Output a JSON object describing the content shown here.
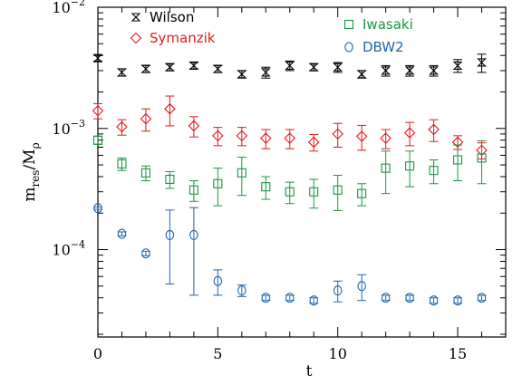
{
  "chart_data": {
    "type": "scatter",
    "xlabel": "t",
    "ylabel_main": "m",
    "ylabel_sub": "res",
    "ylabel_den": "/M",
    "ylabel_den_sub": "ρ",
    "xlim": [
      0,
      17
    ],
    "ylim": [
      1.9e-05,
      0.01
    ],
    "yscale": "log",
    "x_ticks": [
      0,
      5,
      10,
      15
    ],
    "x_tick_labels": [
      "0",
      "5",
      "10",
      "15"
    ],
    "y_ticks": [
      0.0001,
      0.001,
      0.01
    ],
    "y_tick_labels": [
      {
        "base": "10",
        "exp": "−4"
      },
      {
        "base": "10",
        "exp": "−3"
      },
      {
        "base": "10",
        "exp": "−2"
      }
    ],
    "legend_placement": "top",
    "series": [
      {
        "name": "Wilson",
        "color": "#000000",
        "marker": "hourglass",
        "x": [
          0,
          1,
          2,
          3,
          4,
          5,
          6,
          7,
          8,
          9,
          10,
          11,
          12,
          13,
          14,
          15,
          16
        ],
        "y": [
          0.0038,
          0.0029,
          0.0031,
          0.0032,
          0.0033,
          0.0031,
          0.0028,
          0.0029,
          0.0033,
          0.0032,
          0.0032,
          0.0028,
          0.003,
          0.003,
          0.003,
          0.0033,
          0.0035
        ],
        "err": [
          0.0002,
          0.0002,
          0.0002,
          0.0002,
          0.0002,
          0.0002,
          0.0002,
          0.0003,
          0.0003,
          0.0002,
          0.0003,
          0.0002,
          0.0003,
          0.0003,
          0.0003,
          0.0004,
          0.0006
        ]
      },
      {
        "name": "Symanzik",
        "color": "#e41a1c",
        "marker": "diamond",
        "x": [
          0,
          1,
          2,
          3,
          4,
          5,
          6,
          7,
          8,
          9,
          10,
          11,
          12,
          13,
          14,
          15,
          16
        ],
        "y": [
          0.0014,
          0.00103,
          0.0012,
          0.00145,
          0.00105,
          0.00087,
          0.00087,
          0.00083,
          0.00083,
          0.00077,
          0.0009,
          0.00086,
          0.00083,
          0.00092,
          0.00098,
          0.00077,
          0.00066
        ],
        "err": [
          0.0002,
          0.00015,
          0.00025,
          0.0004,
          0.0002,
          0.00015,
          0.00015,
          0.00015,
          0.00015,
          0.00012,
          0.0002,
          0.0002,
          0.00015,
          0.0002,
          0.0002,
          0.0001,
          0.0001
        ]
      },
      {
        "name": "Iwasaki",
        "color": "#1a9641",
        "marker": "square",
        "x": [
          0,
          1,
          2,
          3,
          4,
          5,
          6,
          7,
          8,
          9,
          10,
          11,
          12,
          13,
          14,
          15,
          16
        ],
        "y": [
          0.0008,
          0.00051,
          0.00043,
          0.00038,
          0.00031,
          0.00035,
          0.00043,
          0.00033,
          0.0003,
          0.0003,
          0.00031,
          0.00029,
          0.00047,
          0.00049,
          0.00045,
          0.00055,
          0.00057
        ],
        "err": [
          6e-05,
          6e-05,
          6e-05,
          6e-05,
          6e-05,
          0.00012,
          0.00015,
          7e-05,
          6e-05,
          8e-05,
          0.0001,
          6e-05,
          0.00018,
          0.00016,
          0.0001,
          0.00018,
          0.00022
        ]
      },
      {
        "name": "DBW2",
        "color": "#2166ac",
        "marker": "circle",
        "x": [
          0,
          1,
          2,
          3,
          4,
          5,
          6,
          7,
          8,
          9,
          10,
          11,
          12,
          13,
          14,
          15,
          16
        ],
        "y": [
          0.00022,
          0.000135,
          9.3e-05,
          0.000132,
          0.000132,
          5.5e-05,
          4.6e-05,
          4e-05,
          4e-05,
          3.8e-05,
          4.6e-05,
          5e-05,
          4e-05,
          4e-05,
          3.8e-05,
          3.8e-05,
          4e-05
        ],
        "err": [
          5e-06,
          5e-06,
          4e-06,
          8e-05,
          9e-05,
          1.3e-05,
          5e-06,
          2e-06,
          2e-06,
          2e-06,
          9e-06,
          1.2e-05,
          2e-06,
          2e-06,
          2e-06,
          2e-06,
          2e-06
        ]
      }
    ]
  }
}
